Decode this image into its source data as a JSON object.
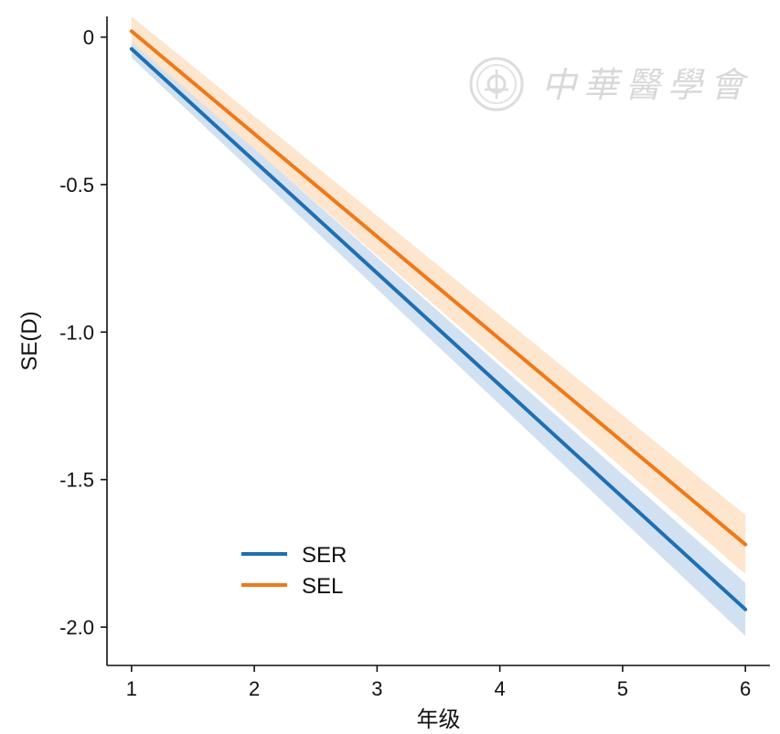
{
  "chart_data": {
    "type": "line",
    "xlabel": "年级",
    "ylabel": "SE(D)",
    "xlim": [
      0.8,
      6.2
    ],
    "ylim": [
      -2.13,
      0.07
    ],
    "x_ticks": [
      1,
      2,
      3,
      4,
      5,
      6
    ],
    "y_ticks": [
      0,
      -0.5,
      -1.0,
      -1.5,
      -2.0
    ],
    "y_tick_labels": [
      "0",
      "-0.5",
      "-1.0",
      "-1.5",
      "-2.0"
    ],
    "grid": false,
    "legend_position": "bottom-left",
    "series": [
      {
        "name": "SER",
        "color": "#1f6fb2",
        "band_color": "#c9dcef",
        "x": [
          1,
          6
        ],
        "y": [
          -0.04,
          -1.94
        ],
        "ci_lower": [
          -0.07,
          -2.03
        ],
        "ci_upper": [
          -0.01,
          -1.85
        ]
      },
      {
        "name": "SEL",
        "color": "#f07818",
        "band_color": "#fde0c6",
        "x": [
          1,
          6
        ],
        "y": [
          0.02,
          -1.72
        ],
        "ci_lower": [
          -0.02,
          -1.82
        ],
        "ci_upper": [
          0.07,
          -1.62
        ]
      }
    ]
  },
  "watermark": {
    "text": "中華醫學會",
    "color": "#d8d8d8"
  }
}
